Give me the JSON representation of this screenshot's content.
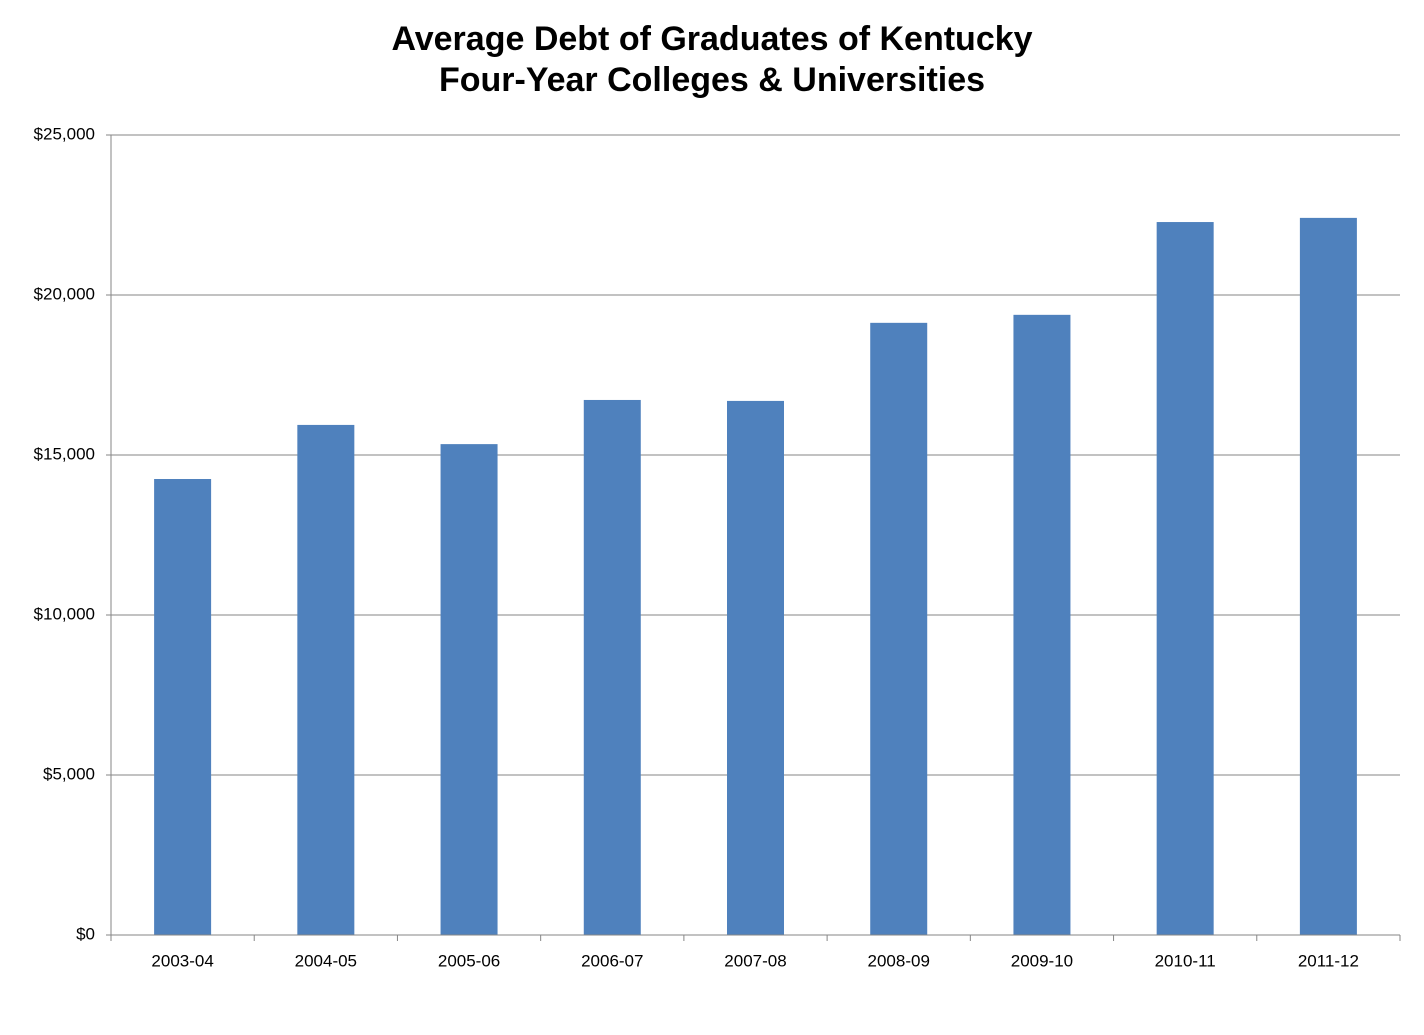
{
  "chart_data": {
    "type": "bar",
    "title": [
      "Average Debt of Graduates of Kentucky",
      "Four-Year Colleges & Universities"
    ],
    "categories": [
      "2003-04",
      "2004-05",
      "2005-06",
      "2006-07",
      "2007-08",
      "2008-09",
      "2009-10",
      "2010-11",
      "2011-12"
    ],
    "values": [
      14250,
      15940,
      15340,
      16720,
      16690,
      19130,
      19380,
      22280,
      22410
    ],
    "color": "#4f81bd",
    "ylim": [
      0,
      25000
    ],
    "yticks": [
      {
        "value": 0,
        "label": "$0"
      },
      {
        "value": 5000,
        "label": "$5,000"
      },
      {
        "value": 10000,
        "label": "$10,000"
      },
      {
        "value": 15000,
        "label": "$15,000"
      },
      {
        "value": 20000,
        "label": "$20,000"
      },
      {
        "value": 25000,
        "label": "$25,000"
      }
    ],
    "grid": true
  }
}
